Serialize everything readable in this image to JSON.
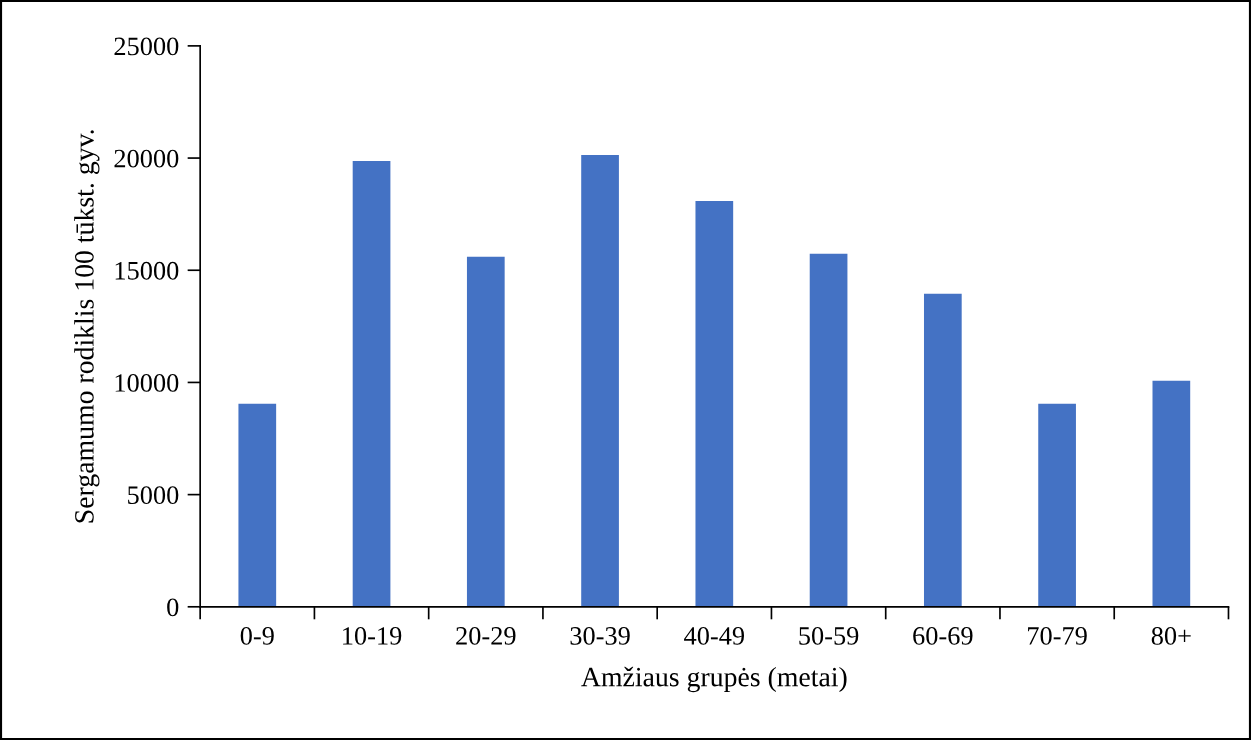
{
  "chart_data": {
    "type": "bar",
    "xlabel": "Amžiaus grupės (metai)",
    "ylabel": "Sergamumo rodiklis 100 tūkst. gyv.",
    "categories": [
      "0-9",
      "10-19",
      "20-29",
      "30-39",
      "40-49",
      "50-59",
      "60-69",
      "70-79",
      "80+"
    ],
    "values": [
      9050,
      19870,
      15600,
      20140,
      18090,
      15730,
      13950,
      9050,
      10070
    ],
    "color": "#4472c4",
    "ylim": [
      0,
      25000
    ],
    "yticks": [
      0,
      5000,
      10000,
      15000,
      20000,
      25000
    ],
    "grid": false,
    "legend": false
  }
}
